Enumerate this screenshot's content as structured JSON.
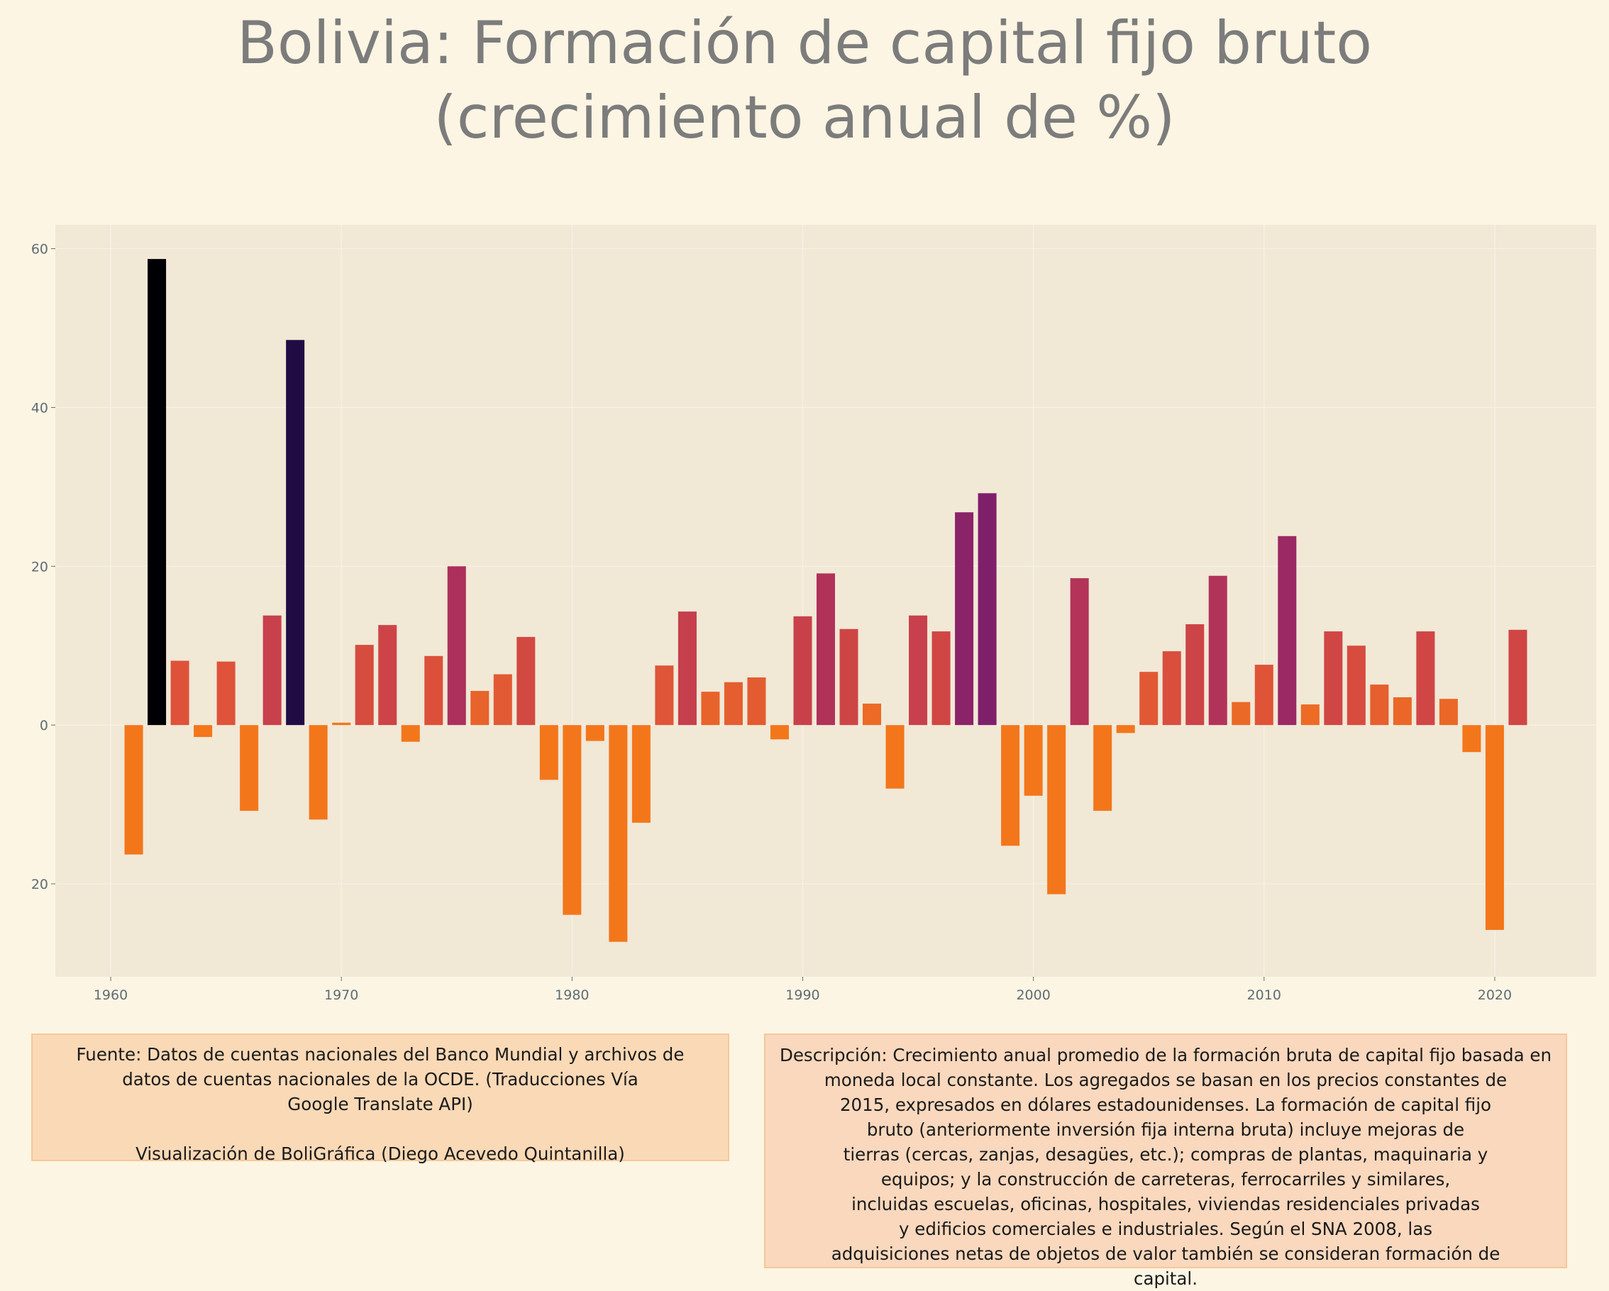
{
  "title": {
    "line1": "Bolivia:  Formación de capital fijo bruto",
    "line2": "(crecimiento anual de %)"
  },
  "chart_data": {
    "type": "bar",
    "x": [
      1961,
      1962,
      1963,
      1964,
      1965,
      1966,
      1967,
      1968,
      1969,
      1970,
      1971,
      1972,
      1973,
      1974,
      1975,
      1976,
      1977,
      1978,
      1979,
      1980,
      1981,
      1982,
      1983,
      1984,
      1985,
      1986,
      1987,
      1988,
      1989,
      1990,
      1991,
      1992,
      1993,
      1994,
      1995,
      1996,
      1997,
      1998,
      1999,
      2000,
      2001,
      2002,
      2003,
      2004,
      2005,
      2006,
      2007,
      2008,
      2009,
      2010,
      2011,
      2012,
      2013,
      2014,
      2015,
      2016,
      2017,
      2018,
      2019,
      2020,
      2021
    ],
    "values": [
      -16.3,
      58.7,
      8.1,
      -1.5,
      8.0,
      -10.8,
      13.8,
      48.5,
      -11.9,
      0.3,
      10.1,
      12.6,
      -2.1,
      8.7,
      20.0,
      4.3,
      6.4,
      11.1,
      -6.9,
      -23.9,
      -2.0,
      -27.3,
      -12.3,
      7.5,
      14.3,
      4.2,
      5.4,
      6.0,
      -1.8,
      13.7,
      19.1,
      12.1,
      2.7,
      -8.0,
      13.8,
      11.8,
      26.8,
      29.2,
      -15.2,
      -8.9,
      -21.3,
      18.5,
      -10.8,
      -1.0,
      6.7,
      9.3,
      12.7,
      18.8,
      2.9,
      7.6,
      23.8,
      2.6,
      11.8,
      10.0,
      5.1,
      3.5,
      11.8,
      3.3,
      -3.4,
      -25.8,
      12.0
    ],
    "xlim": [
      1957.6,
      2024.4
    ],
    "ylim": [
      -31.7,
      63.0
    ],
    "xticks": [
      1960,
      1970,
      1980,
      1990,
      2000,
      2010,
      2020
    ],
    "yticks": [
      -20,
      0,
      20,
      40,
      60
    ],
    "ytick_labels": [
      "\u000220",
      "0",
      "20",
      "40",
      "60"
    ],
    "grid": true,
    "colormap": "inferno (reversed): higher values darker",
    "colors": {
      "page_background": "#fdf5e3",
      "plot_background": "#f1e8d6",
      "tick_label": "#5f6c76",
      "title": "#7c7c7c"
    }
  },
  "notes": {
    "source_lines": [
      "Fuente: Datos de cuentas nacionales del Banco Mundial y archivos de",
      "datos de cuentas nacionales de la OCDE. (Traducciones Vía",
      "Google Translate API)"
    ],
    "credit": "Visualización de BoliGráfica (Diego Acevedo Quintanilla)",
    "description_lines": [
      "Descripción: Crecimiento anual promedio de la formación bruta de capital fijo basada en",
      "moneda local constante. Los agregados se basan en los precios constantes de",
      "2015, expresados en dólares estadounidenses. La formación de capital fijo",
      "bruto (anteriormente inversión fija interna bruta) incluye mejoras de",
      "tierras (cercas, zanjas, desagües, etc.); compras de plantas, maquinaria y",
      "equipos; y la construcción de carreteras, ferrocarriles y similares,",
      "incluidas escuelas, oficinas, hospitales, viviendas residenciales privadas",
      "y edificios comerciales e industriales. Según el SNA 2008, las",
      "adquisiciones netas de objetos de valor también se consideran formación de",
      "capital."
    ]
  }
}
